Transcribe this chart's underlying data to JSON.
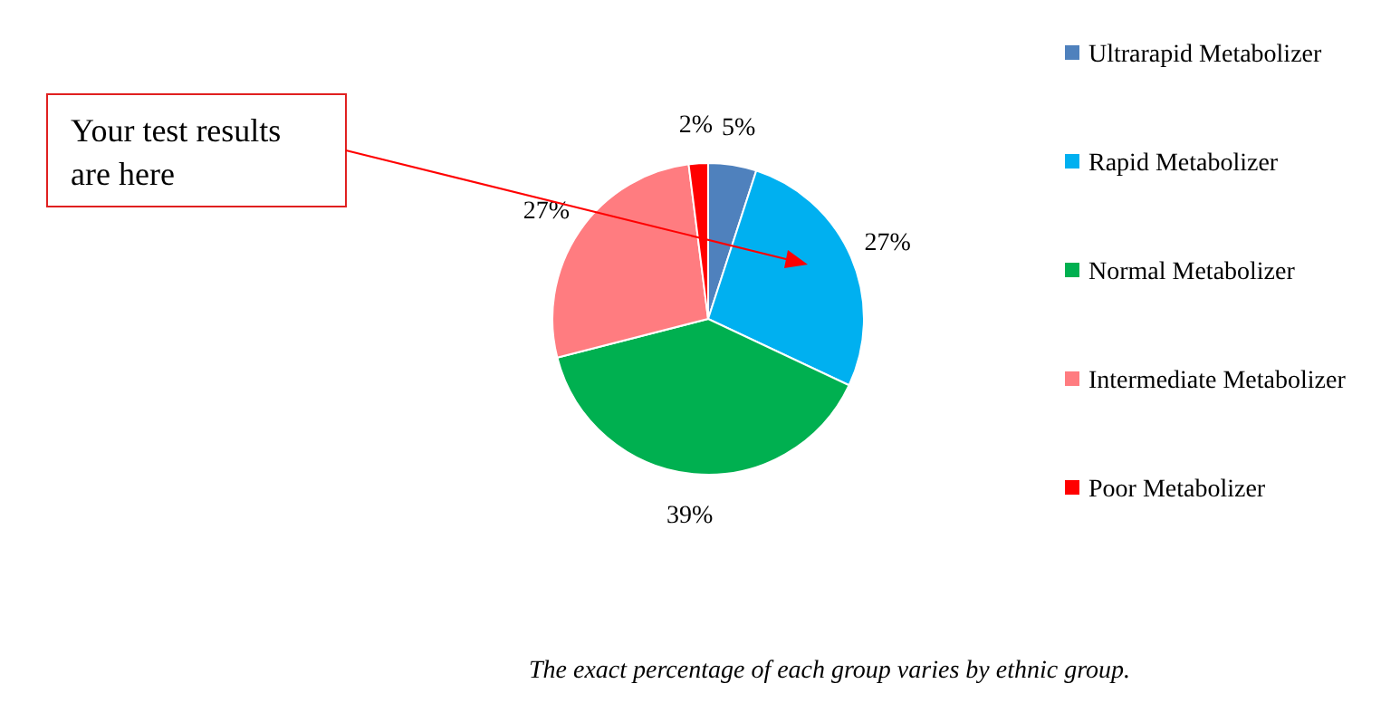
{
  "chart_data": {
    "type": "pie",
    "categories": [
      "Ultrarapid Metabolizer",
      "Rapid Metabolizer",
      "Normal Metabolizer",
      "Intermediate Metabolizer",
      "Poor Metabolizer"
    ],
    "values": [
      5,
      27,
      39,
      27,
      2
    ],
    "colors": [
      "#4f81bd",
      "#00b0f0",
      "#00b050",
      "#ff7c80",
      "#ff0000"
    ],
    "value_labels": [
      "5%",
      "27%",
      "39%",
      "27%",
      "2%"
    ],
    "legend": "right",
    "annotations": [
      "Your test results are here",
      "The exact percentage of each group varies by ethnic group."
    ]
  }
}
